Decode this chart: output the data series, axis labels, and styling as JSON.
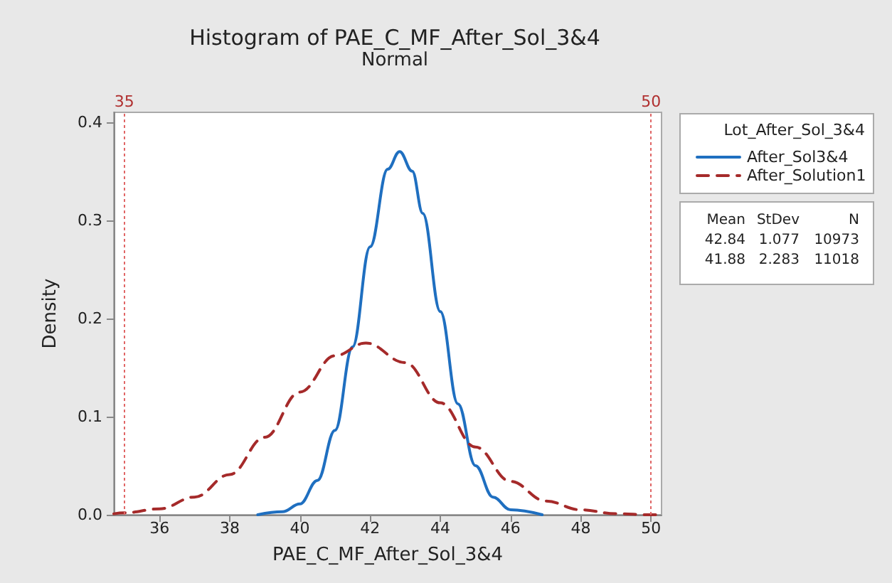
{
  "chart_data": {
    "type": "line",
    "title": "Histogram of PAE_C_MF_After_Sol_3&4",
    "subtitle": "Normal",
    "xlabel": "PAE_C_MF_After_Sol_3&4",
    "ylabel": "Density",
    "legend_title": "Lot_After_Sol_3&4",
    "legend": "right",
    "grid": false,
    "marker": "none",
    "xlim": [
      34.7,
      50.3
    ],
    "xticks": [
      36,
      38,
      40,
      42,
      44,
      46,
      48,
      50
    ],
    "ylim": [
      0,
      0.41
    ],
    "yticks": [
      {
        "value": 0,
        "label": "0.0"
      },
      {
        "value": 0.1,
        "label": "0.1"
      },
      {
        "value": 0.2,
        "label": "0.2"
      },
      {
        "value": 0.3,
        "label": "0.3"
      },
      {
        "value": 0.4,
        "label": "0.4"
      }
    ],
    "series": [
      {
        "name": "After_Sol3&4",
        "color": "#1f6fc0",
        "line_style": "solid",
        "x": [
          38.8,
          39.5,
          40,
          40.5,
          41,
          41.5,
          42,
          42.5,
          42.84,
          43.2,
          43.5,
          44,
          44.5,
          45,
          45.5,
          46,
          46.9
        ],
        "values": [
          0,
          0.003,
          0.011,
          0.035,
          0.086,
          0.171,
          0.273,
          0.352,
          0.37,
          0.35,
          0.307,
          0.207,
          0.113,
          0.05,
          0.018,
          0.005,
          0
        ]
      },
      {
        "name": "After_Solution1",
        "color": "#a52a2a",
        "line_style": "dashed",
        "x": [
          34.7,
          35,
          36,
          37,
          38,
          39,
          40,
          41,
          41.88,
          43,
          44,
          45,
          46,
          47,
          48,
          49,
          50,
          50.3
        ],
        "values": [
          0.001,
          0.002,
          0.006,
          0.018,
          0.041,
          0.079,
          0.125,
          0.162,
          0.175,
          0.155,
          0.114,
          0.069,
          0.034,
          0.014,
          0.005,
          0.001,
          0,
          0
        ]
      }
    ],
    "ref_lines": [
      {
        "axis": "x",
        "value": 35,
        "label": "35",
        "color": "#e06666",
        "line_style": "dotted"
      },
      {
        "axis": "x",
        "value": 50,
        "label": "50",
        "color": "#e06666",
        "line_style": "dotted"
      }
    ],
    "annotations": [
      "Mean StDev N",
      "42.84 1.077 10973",
      "41.88 2.283 11018"
    ]
  }
}
